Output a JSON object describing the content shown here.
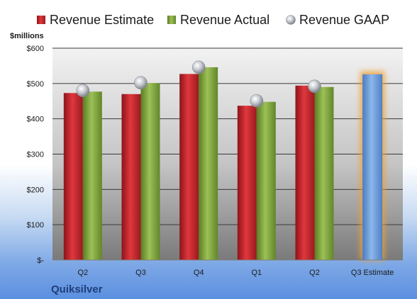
{
  "company": "Quiksilver",
  "chart_data": {
    "type": "bar",
    "title": "",
    "xlabel": "",
    "ylabel": "$millions",
    "ylim": [
      0,
      600
    ],
    "y_ticks": [
      {
        "value": 0,
        "label": "$-"
      },
      {
        "value": 100,
        "label": "$100"
      },
      {
        "value": 200,
        "label": "$200"
      },
      {
        "value": 300,
        "label": "$300"
      },
      {
        "value": 400,
        "label": "$400"
      },
      {
        "value": 500,
        "label": "$500"
      },
      {
        "value": 600,
        "label": "$600"
      }
    ],
    "categories": [
      "Q2",
      "Q3",
      "Q4",
      "Q1",
      "Q2",
      "Q3 Estimate"
    ],
    "series": [
      {
        "name": "Revenue Estimate",
        "type": "bar",
        "color": "#c0262c",
        "values": [
          473,
          470,
          527,
          437,
          494,
          null
        ]
      },
      {
        "name": "Revenue Actual",
        "type": "bar",
        "color": "#7fa33d",
        "values": [
          477,
          501,
          546,
          448,
          490,
          null
        ]
      },
      {
        "name": "Revenue GAAP",
        "type": "scatter",
        "color": "#b8bcc4",
        "values": [
          480,
          502,
          546,
          451,
          492,
          null
        ]
      }
    ],
    "forecast": {
      "category_index": 5,
      "value": 526,
      "color": "#6b9bd8",
      "glow_color": "#f0a030"
    },
    "legend_position": "top",
    "grid": true
  }
}
